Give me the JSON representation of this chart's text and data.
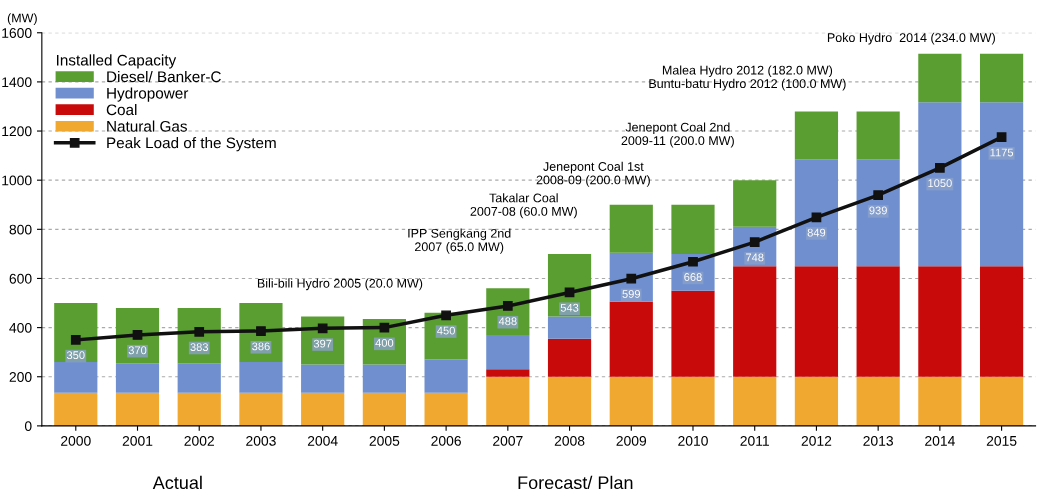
{
  "chart_data": {
    "type": "bar",
    "stacked": true,
    "ylabel": "(MW)",
    "legend_title": "Installed Capacity",
    "categories": [
      "2000",
      "2001",
      "2002",
      "2003",
      "2004",
      "2005",
      "2006",
      "2007",
      "2008",
      "2009",
      "2010",
      "2011",
      "2012",
      "2013",
      "2014",
      "2015"
    ],
    "series": [
      {
        "name": "Natural Gas",
        "color": "#f0a830",
        "values": [
          135,
          135,
          135,
          135,
          135,
          135,
          135,
          200,
          200,
          200,
          200,
          200,
          200,
          200,
          200,
          200
        ]
      },
      {
        "name": "Coal",
        "color": "#c80a0a",
        "values": [
          0,
          0,
          0,
          0,
          0,
          0,
          0,
          30,
          155,
          305,
          350,
          450,
          450,
          450,
          450,
          450
        ]
      },
      {
        "name": "Hydropower",
        "color": "#6f8fcf",
        "values": [
          125,
          120,
          120,
          125,
          115,
          115,
          135,
          140,
          90,
          200,
          150,
          160,
          435,
          435,
          667,
          667
        ]
      },
      {
        "name": "Diesel/ Banker-C",
        "color": "#5a9e32",
        "values": [
          240,
          225,
          225,
          240,
          195,
          185,
          190,
          190,
          255,
          195,
          200,
          190,
          195,
          195,
          198,
          198
        ]
      },
      {
        "name": "Peak Load of the System",
        "type": "line",
        "color": "#111111",
        "marker": "square",
        "line_style": "solid",
        "values": [
          350,
          370,
          383,
          386,
          397,
          400,
          450,
          488,
          543,
          599,
          668,
          748,
          849,
          939,
          1050,
          1175
        ],
        "value_labels": [
          "350",
          "370",
          "383",
          "386",
          "397",
          "400",
          "450",
          "488",
          "543",
          "599",
          "668",
          "748",
          "849",
          "939",
          "1050",
          "1175"
        ]
      }
    ],
    "ylim": [
      0,
      1600
    ],
    "yticks": [
      0,
      200,
      400,
      600,
      800,
      1000,
      1200,
      1400,
      1600
    ],
    "grid": "y",
    "legend": "top left",
    "annotations": [
      "Bili-bili Hydro 2005 (20.0 MW)",
      "IPP Sengkang 2nd\n2007 (65.0 MW)",
      "Takalar Coal\n2007-08 (60.0 MW)",
      "Jenepont Coal 1st\n2008-09 (200.0 MW)",
      "Jenepont Coal 2nd\n2009-11 (200.0 MW)",
      "Malea Hydro 2012 (182.0 MW)\nBuntu-batu Hydro 2012 (100.0 MW)",
      "Poko Hydro  2014 (234.0 MW)",
      "Actual",
      "Forecast/ Plan"
    ]
  }
}
